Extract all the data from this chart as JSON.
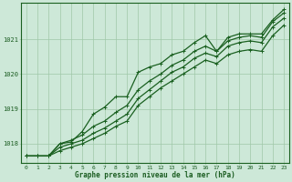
{
  "background_color": "#cde8d8",
  "plot_bg_color": "#cde8d8",
  "grid_color": "#a0c8a8",
  "line_color": "#1a6020",
  "text_color": "#1a5c20",
  "xlabel": "Graphe pression niveau de la mer (hPa)",
  "xlim": [
    -0.5,
    23.5
  ],
  "ylim": [
    1017.45,
    1022.05
  ],
  "yticks": [
    1018,
    1019,
    1020,
    1021
  ],
  "xticks": [
    0,
    1,
    2,
    3,
    4,
    5,
    6,
    7,
    8,
    9,
    10,
    11,
    12,
    13,
    14,
    15,
    16,
    17,
    18,
    19,
    20,
    21,
    22,
    23
  ],
  "series_marked": [
    1017.65,
    1017.65,
    1017.65,
    1018.0,
    1018.05,
    1018.35,
    1018.85,
    1019.05,
    1019.35,
    1019.35,
    1020.05,
    1020.2,
    1020.3,
    1020.55,
    1020.65,
    1020.9,
    1021.1,
    1020.65,
    1021.05,
    1021.15,
    1021.15,
    1021.15,
    1021.55,
    1021.85
  ],
  "series_linear": [
    [
      1017.65,
      1017.65,
      1017.65,
      1017.8,
      1017.9,
      1018.0,
      1018.15,
      1018.3,
      1018.5,
      1018.65,
      1019.1,
      1019.35,
      1019.6,
      1019.8,
      1020.0,
      1020.2,
      1020.4,
      1020.3,
      1020.55,
      1020.65,
      1020.7,
      1020.65,
      1021.1,
      1021.4
    ],
    [
      1017.65,
      1017.65,
      1017.65,
      1017.9,
      1018.0,
      1018.1,
      1018.3,
      1018.45,
      1018.65,
      1018.85,
      1019.3,
      1019.55,
      1019.8,
      1020.05,
      1020.2,
      1020.45,
      1020.6,
      1020.5,
      1020.8,
      1020.9,
      1020.95,
      1020.9,
      1021.35,
      1021.6
    ],
    [
      1017.65,
      1017.65,
      1017.65,
      1018.0,
      1018.1,
      1018.25,
      1018.5,
      1018.65,
      1018.9,
      1019.1,
      1019.55,
      1019.8,
      1020.0,
      1020.25,
      1020.4,
      1020.65,
      1020.8,
      1020.65,
      1020.95,
      1021.05,
      1021.1,
      1021.05,
      1021.5,
      1021.75
    ]
  ],
  "marker": "+",
  "markersize": 3.5,
  "linewidth": 0.9,
  "figsize": [
    3.2,
    2.0
  ],
  "dpi": 100
}
